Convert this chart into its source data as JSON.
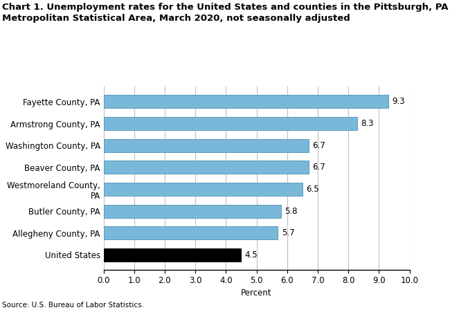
{
  "title_line1": "Chart 1. Unemployment rates for the United States and counties in the Pittsburgh, PA",
  "title_line2": "Metropolitan Statistical Area, March 2020, not seasonally adjusted",
  "categories": [
    "United States",
    "Allegheny County, PA",
    "Butler County, PA",
    "Westmoreland County,\nPA",
    "Beaver County, PA",
    "Washington County, PA",
    "Armstrong County, PA",
    "Fayette County, PA"
  ],
  "values": [
    4.5,
    5.7,
    5.8,
    6.5,
    6.7,
    6.7,
    8.3,
    9.3
  ],
  "bar_colors": [
    "#000000",
    "#7ab8d9",
    "#7ab8d9",
    "#7ab8d9",
    "#7ab8d9",
    "#7ab8d9",
    "#7ab8d9",
    "#7ab8d9"
  ],
  "bar_edgecolors": [
    "#000000",
    "#5a9abf",
    "#5a9abf",
    "#5a9abf",
    "#5a9abf",
    "#5a9abf",
    "#5a9abf",
    "#5a9abf"
  ],
  "xlabel": "Percent",
  "xlim": [
    0,
    10.0
  ],
  "xticks": [
    0.0,
    1.0,
    2.0,
    3.0,
    4.0,
    5.0,
    6.0,
    7.0,
    8.0,
    9.0,
    10.0
  ],
  "source": "Source: U.S. Bureau of Labor Statistics.",
  "background_color": "#ffffff",
  "grid_color": "#c0c0c0",
  "title_fontsize": 9.5,
  "label_fontsize": 8.5,
  "tick_fontsize": 8.5,
  "value_labels": [
    "4.5",
    "5.7",
    "5.8",
    "6.5",
    "6.7",
    "6.7",
    "8.3",
    "9.3"
  ]
}
